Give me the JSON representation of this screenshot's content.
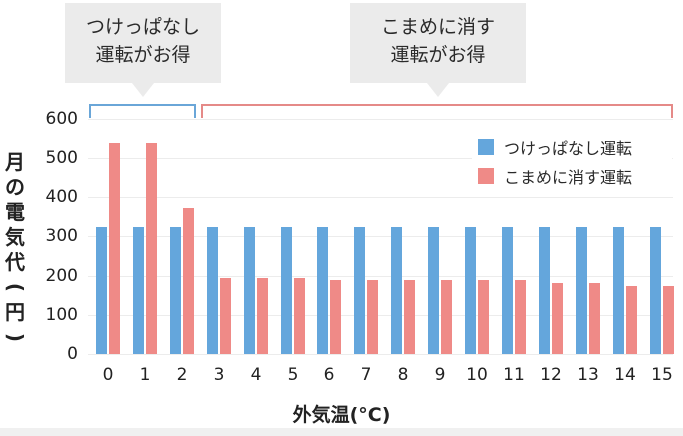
{
  "callouts": [
    {
      "lines": [
        "つけっぱなし",
        "運転がお得"
      ],
      "bracket_color": "#6aa6d8",
      "range": [
        0,
        2
      ]
    },
    {
      "lines": [
        "こまめに消す",
        "運転がお得"
      ],
      "bracket_color": "#e58a88",
      "range": [
        3,
        15
      ]
    }
  ],
  "axis": {
    "ylabel_chars": [
      "月",
      "の",
      "電",
      "気",
      "代",
      "(",
      "円",
      ")"
    ],
    "ylabel": "月の電気代(円)",
    "xlabel": "外気温(°C)",
    "yticks": [
      "0",
      "100",
      "200",
      "300",
      "400",
      "500",
      "600"
    ],
    "xticks": [
      "0",
      "1",
      "2",
      "3",
      "4",
      "5",
      "6",
      "7",
      "8",
      "9",
      "10",
      "11",
      "12",
      "13",
      "14",
      "15"
    ]
  },
  "legend": [
    {
      "label": "つけっぱなし運転",
      "color": "#64a6dc"
    },
    {
      "label": "こまめに消す運転",
      "color": "#ef8a87"
    }
  ],
  "chart_data": {
    "type": "bar",
    "title": "",
    "xlabel": "外気温(°C)",
    "ylabel": "月の電気代(円)",
    "ylim": [
      0,
      600
    ],
    "grid": true,
    "legend_position": "upper right",
    "categories": [
      "0",
      "1",
      "2",
      "3",
      "4",
      "5",
      "6",
      "7",
      "8",
      "9",
      "10",
      "11",
      "12",
      "13",
      "14",
      "15"
    ],
    "series": [
      {
        "name": "つけっぱなし運転",
        "color": "#64a6dc",
        "values": [
          324,
          324,
          324,
          324,
          324,
          324,
          324,
          324,
          324,
          324,
          324,
          324,
          324,
          324,
          324,
          324
        ]
      },
      {
        "name": "こまめに消す運転",
        "color": "#ef8a87",
        "values": [
          538,
          538,
          372,
          194,
          194,
          194,
          189,
          189,
          189,
          189,
          189,
          189,
          181,
          181,
          174,
          174
        ]
      }
    ],
    "annotations": [
      {
        "text": "つけっぱなし運転がお得",
        "x_range": [
          "0",
          "2"
        ]
      },
      {
        "text": "こまめに消す運転がお得",
        "x_range": [
          "3",
          "15"
        ]
      }
    ]
  }
}
